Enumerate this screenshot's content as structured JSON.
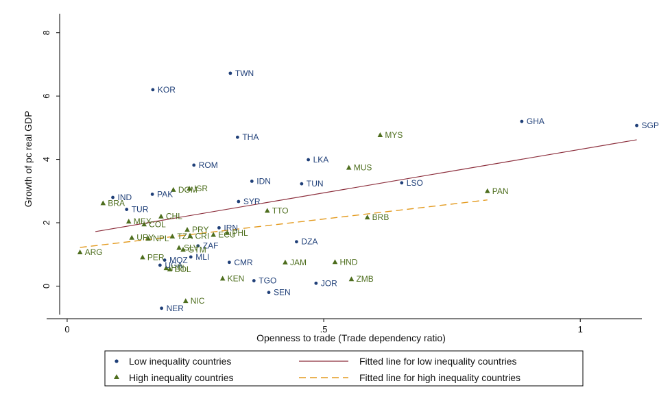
{
  "chart_data": {
    "type": "scatter",
    "xlabel": "Openness to trade (Trade dependency ratio)",
    "ylabel": "Growth of pc real GDP",
    "xlim": [
      -0.04,
      1.12
    ],
    "ylim": [
      -0.9,
      8.6
    ],
    "x_ticks": [
      0,
      0.5,
      1
    ],
    "x_tick_labels": [
      "0",
      ".5",
      "1"
    ],
    "y_ticks": [
      0,
      2,
      4,
      6,
      8
    ],
    "y_tick_labels": [
      "0",
      "2",
      "4",
      "6",
      "8"
    ],
    "grid": false,
    "legend_position": "bottom",
    "series": [
      {
        "name": "Low inequality countries",
        "marker": "circle",
        "color": "#1f3f78",
        "points": [
          {
            "label": "TWN",
            "x": 0.318,
            "y": 6.72
          },
          {
            "label": "KOR",
            "x": 0.167,
            "y": 6.2
          },
          {
            "label": "THA",
            "x": 0.332,
            "y": 4.7
          },
          {
            "label": "GHA",
            "x": 0.886,
            "y": 5.2
          },
          {
            "label": "SGP",
            "x": 1.11,
            "y": 5.07
          },
          {
            "label": "LKA",
            "x": 0.47,
            "y": 3.99
          },
          {
            "label": "ROM",
            "x": 0.247,
            "y": 3.82
          },
          {
            "label": "IDN",
            "x": 0.36,
            "y": 3.31
          },
          {
            "label": "TUN",
            "x": 0.457,
            "y": 3.23
          },
          {
            "label": "LSO",
            "x": 0.652,
            "y": 3.26
          },
          {
            "label": "IND",
            "x": 0.089,
            "y": 2.8
          },
          {
            "label": "PAK",
            "x": 0.166,
            "y": 2.9
          },
          {
            "label": "SYR",
            "x": 0.334,
            "y": 2.67
          },
          {
            "label": "TUR",
            "x": 0.116,
            "y": 2.42
          },
          {
            "label": "IRN",
            "x": 0.296,
            "y": 1.84
          },
          {
            "label": "DZA",
            "x": 0.447,
            "y": 1.4
          },
          {
            "label": "ZAF",
            "x": 0.255,
            "y": 1.27
          },
          {
            "label": "MLI",
            "x": 0.241,
            "y": 0.92
          },
          {
            "label": "MOZ",
            "x": 0.19,
            "y": 0.82
          },
          {
            "label": "UGA",
            "x": 0.181,
            "y": 0.66
          },
          {
            "label": "CMR",
            "x": 0.316,
            "y": 0.75
          },
          {
            "label": "TGO",
            "x": 0.364,
            "y": 0.17
          },
          {
            "label": "JOR",
            "x": 0.485,
            "y": 0.09
          },
          {
            "label": "SEN",
            "x": 0.393,
            "y": -0.2
          },
          {
            "label": "NER",
            "x": 0.184,
            "y": -0.7
          }
        ]
      },
      {
        "name": "High inequality countries",
        "marker": "triangle",
        "color": "#4e6e1e",
        "points": [
          {
            "label": "MYS",
            "x": 0.61,
            "y": 4.77
          },
          {
            "label": "MUS",
            "x": 0.549,
            "y": 3.74
          },
          {
            "label": "PAN",
            "x": 0.819,
            "y": 3.0
          },
          {
            "label": "DOM",
            "x": 0.207,
            "y": 3.04
          },
          {
            "label": "ISR",
            "x": 0.238,
            "y": 3.08
          },
          {
            "label": "BRA",
            "x": 0.07,
            "y": 2.62
          },
          {
            "label": "TTO",
            "x": 0.39,
            "y": 2.38
          },
          {
            "label": "BRB",
            "x": 0.585,
            "y": 2.17
          },
          {
            "label": "CHL",
            "x": 0.183,
            "y": 2.2
          },
          {
            "label": "MEX",
            "x": 0.12,
            "y": 2.04
          },
          {
            "label": "COL",
            "x": 0.15,
            "y": 1.95
          },
          {
            "label": "PRY",
            "x": 0.234,
            "y": 1.78
          },
          {
            "label": "PHL",
            "x": 0.312,
            "y": 1.68
          },
          {
            "label": "TZA",
            "x": 0.205,
            "y": 1.57
          },
          {
            "label": "CRI",
            "x": 0.24,
            "y": 1.58
          },
          {
            "label": "ECU",
            "x": 0.285,
            "y": 1.62
          },
          {
            "label": "URY",
            "x": 0.126,
            "y": 1.53
          },
          {
            "label": "NPL",
            "x": 0.158,
            "y": 1.5
          },
          {
            "label": "SLV",
            "x": 0.218,
            "y": 1.21
          },
          {
            "label": "GTM",
            "x": 0.226,
            "y": 1.15
          },
          {
            "label": "ARG",
            "x": 0.025,
            "y": 1.07
          },
          {
            "label": "PER",
            "x": 0.147,
            "y": 0.91
          },
          {
            "label": "JAM",
            "x": 0.425,
            "y": 0.75
          },
          {
            "label": "HND",
            "x": 0.522,
            "y": 0.76
          },
          {
            "label": "KEN",
            "x": 0.303,
            "y": 0.24
          },
          {
            "label": "ZMB",
            "x": 0.554,
            "y": 0.22
          },
          {
            "label": "HTI",
            "x": 0.193,
            "y": 0.57
          },
          {
            "label": "BOL",
            "x": 0.2,
            "y": 0.53
          },
          {
            "label": "NIC",
            "x": 0.231,
            "y": -0.47
          }
        ]
      }
    ],
    "fitted_lines": [
      {
        "name": "Fitted line for low inequality countries",
        "color": "#8c2e3c",
        "style": "solid",
        "x": [
          0.055,
          1.11
        ],
        "y": [
          1.72,
          4.62
        ]
      },
      {
        "name": "Fitted line for high inequality countries",
        "color": "#e39a1e",
        "style": "dashed",
        "x": [
          0.025,
          0.819
        ],
        "y": [
          1.22,
          2.72
        ]
      }
    ]
  }
}
